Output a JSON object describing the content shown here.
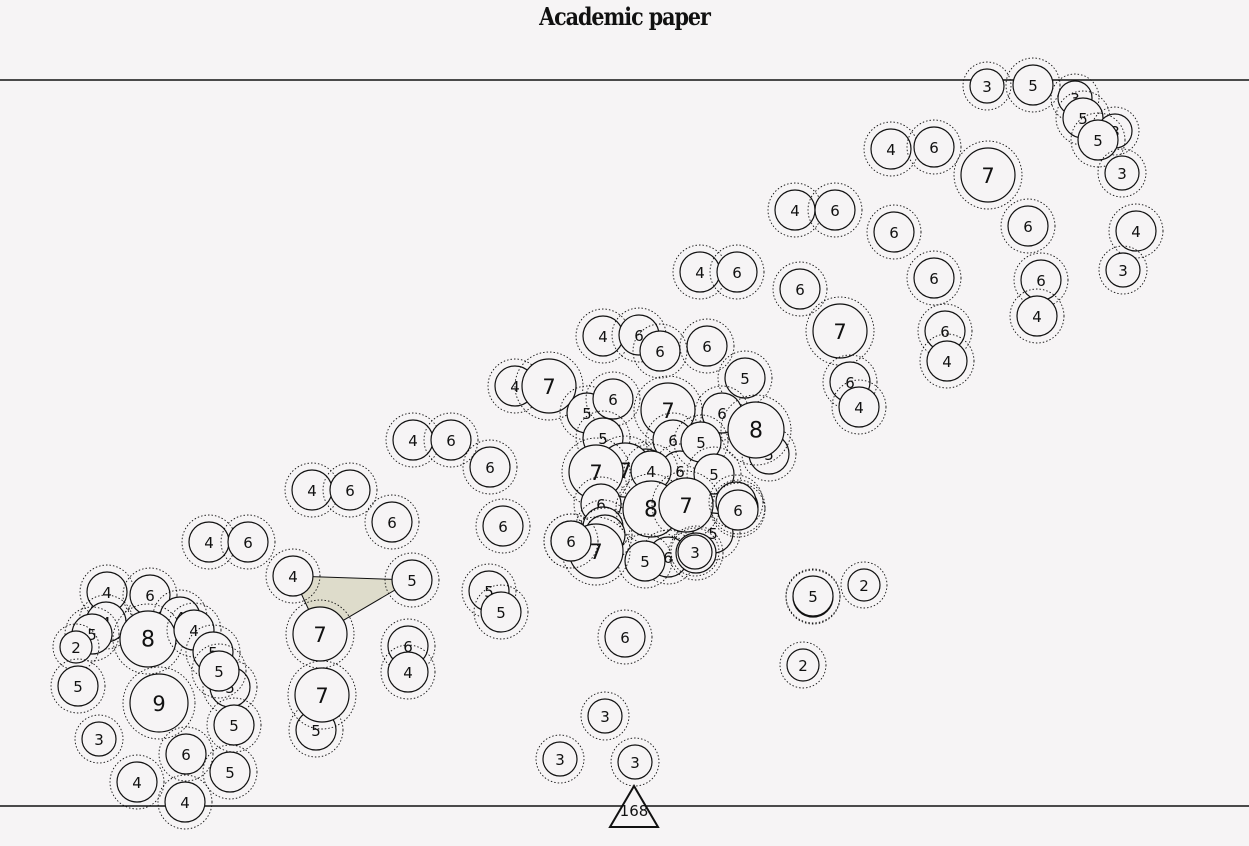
{
  "title": "Academic paper",
  "colors": {
    "background": "#f6f4f5",
    "node_fill": "#f6f4f5",
    "stroke": "#111111",
    "highlight_fill": "#dedccb"
  },
  "highlight": {
    "connects": [
      "5",
      "4",
      "5"
    ]
  },
  "marker": {
    "label": "168",
    "shape": "triangle"
  },
  "nodes": [
    {
      "label": "3"
    },
    {
      "label": "5"
    },
    {
      "label": "3"
    },
    {
      "label": "5"
    },
    {
      "label": "3"
    },
    {
      "label": "5"
    },
    {
      "label": "3"
    },
    {
      "label": "4"
    },
    {
      "label": "6"
    },
    {
      "label": "7"
    },
    {
      "label": "4"
    },
    {
      "label": "6"
    },
    {
      "label": "6"
    },
    {
      "label": "6"
    },
    {
      "label": "4"
    },
    {
      "label": "3"
    },
    {
      "label": "6"
    },
    {
      "label": "6"
    },
    {
      "label": "6"
    },
    {
      "label": "4"
    },
    {
      "label": "6"
    },
    {
      "label": "4"
    },
    {
      "label": "4"
    },
    {
      "label": "6"
    },
    {
      "label": "6"
    },
    {
      "label": "7"
    },
    {
      "label": "6"
    },
    {
      "label": "4"
    },
    {
      "label": "4"
    },
    {
      "label": "6"
    },
    {
      "label": "4"
    },
    {
      "label": "6"
    },
    {
      "label": "6"
    },
    {
      "label": "6"
    },
    {
      "label": "4"
    },
    {
      "label": "7"
    },
    {
      "label": "4"
    },
    {
      "label": "6"
    },
    {
      "label": "6"
    },
    {
      "label": "6"
    },
    {
      "label": "4"
    },
    {
      "label": "6"
    },
    {
      "label": "6"
    },
    {
      "label": "4"
    },
    {
      "label": "7"
    },
    {
      "label": "5"
    },
    {
      "label": "4"
    },
    {
      "label": "5"
    },
    {
      "label": "6"
    },
    {
      "label": "4"
    },
    {
      "label": "7"
    },
    {
      "label": "5"
    },
    {
      "label": "5"
    },
    {
      "label": "5"
    },
    {
      "label": "5"
    },
    {
      "label": "6"
    },
    {
      "label": "5"
    },
    {
      "label": "5"
    },
    {
      "label": "6"
    },
    {
      "label": "7"
    },
    {
      "label": "6"
    },
    {
      "label": "5"
    },
    {
      "label": "6"
    },
    {
      "label": "8"
    },
    {
      "label": "6"
    },
    {
      "label": "5"
    },
    {
      "label": "5"
    },
    {
      "label": "7"
    },
    {
      "label": "7"
    },
    {
      "label": "4"
    },
    {
      "label": "6"
    },
    {
      "label": "5"
    },
    {
      "label": "6"
    },
    {
      "label": "6"
    },
    {
      "label": "4"
    },
    {
      "label": "8"
    },
    {
      "label": "7"
    },
    {
      "label": "6"
    },
    {
      "label": "5"
    },
    {
      "label": "7"
    },
    {
      "label": "6"
    },
    {
      "label": "5"
    },
    {
      "label": "6"
    },
    {
      "label": "3"
    },
    {
      "label": "6"
    },
    {
      "label": "5"
    },
    {
      "label": "2"
    },
    {
      "label": "2"
    },
    {
      "label": "3"
    },
    {
      "label": "3"
    },
    {
      "label": "3"
    },
    {
      "label": "4"
    },
    {
      "label": "6"
    },
    {
      "label": "4"
    },
    {
      "label": "4"
    },
    {
      "label": "5"
    },
    {
      "label": "8"
    },
    {
      "label": "2"
    },
    {
      "label": "4"
    },
    {
      "label": "5"
    },
    {
      "label": "5"
    },
    {
      "label": "5"
    },
    {
      "label": "9"
    },
    {
      "label": "3"
    },
    {
      "label": "5"
    },
    {
      "label": "6"
    },
    {
      "label": "5"
    },
    {
      "label": "4"
    },
    {
      "label": "5"
    },
    {
      "label": "4"
    }
  ]
}
